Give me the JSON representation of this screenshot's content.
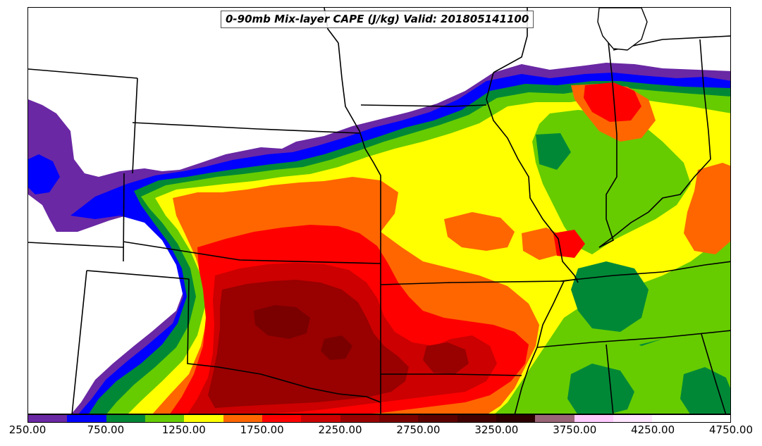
{
  "map": {
    "title": "0-90mb Mix-layer CAPE (J/kg) Valid: 201805141100",
    "variable": "Mix-layer CAPE",
    "units": "J/kg",
    "valid_time": "201805141100"
  },
  "colorbar": {
    "min": 250,
    "max": 4750,
    "interval": 250,
    "colors": [
      "#6a28a4",
      "#0000ff",
      "#008837",
      "#66cc00",
      "#ffff00",
      "#ff6600",
      "#ff0000",
      "#cc0000",
      "#990000",
      "#7a0000",
      "#5c0000",
      "#420000",
      "#2b0000",
      "#996677",
      "#ffccff",
      "#ffe6ff",
      "#ffffff",
      "#ffffff"
    ],
    "tick_labels": [
      "250.00",
      "750.00",
      "1250.00",
      "1750.00",
      "2250.00",
      "2750.00",
      "3250.00",
      "3750.00",
      "4250.00",
      "4750.00"
    ]
  }
}
